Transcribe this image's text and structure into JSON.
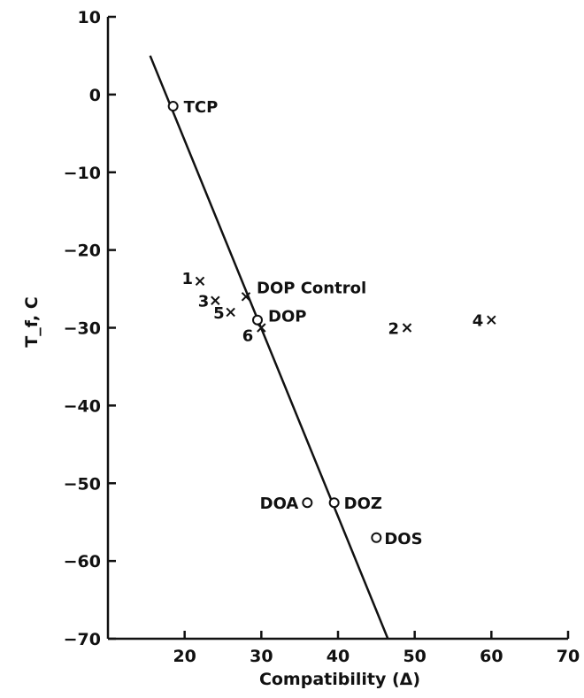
{
  "chart_data": {
    "type": "scatter",
    "title": "",
    "xlabel": "Compatibility (Δ)",
    "ylabel": "T_f, C",
    "xlim": [
      10,
      70
    ],
    "ylim": [
      -70,
      10
    ],
    "x_ticks": [
      20,
      30,
      40,
      50,
      60,
      70
    ],
    "y_ticks": [
      10,
      0,
      -10,
      -20,
      -30,
      -40,
      -50,
      -60,
      -70
    ],
    "grid": false,
    "legend": "none",
    "trend_line": {
      "x": [
        15.5,
        46.5
      ],
      "y": [
        5,
        -70
      ]
    },
    "series": [
      {
        "marker": "circle",
        "points": [
          {
            "label": "TCP",
            "x": 18.5,
            "y": -1.5
          },
          {
            "label": "DOP",
            "x": 29.5,
            "y": -29
          },
          {
            "label": "DOA",
            "x": 36,
            "y": -52.5
          },
          {
            "label": "DOZ",
            "x": 39.5,
            "y": -52.5
          },
          {
            "label": "DOS",
            "x": 45,
            "y": -57
          }
        ]
      },
      {
        "marker": "cross",
        "points": [
          {
            "label": "1",
            "x": 22,
            "y": -24
          },
          {
            "label": "3",
            "x": 24,
            "y": -26.5
          },
          {
            "label": "5",
            "x": 26,
            "y": -28
          },
          {
            "label": "DOP Control",
            "x": 28,
            "y": -26
          },
          {
            "label": "6",
            "x": 30,
            "y": -30
          },
          {
            "label": "2",
            "x": 49,
            "y": -30
          },
          {
            "label": "4",
            "x": 60,
            "y": -29
          }
        ]
      }
    ]
  }
}
